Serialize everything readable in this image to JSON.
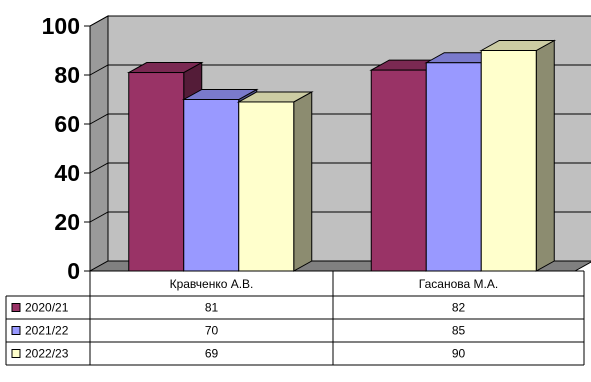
{
  "chart_data": {
    "type": "bar",
    "categories": [
      "Кравченко А.В.",
      "Гасанова М.А."
    ],
    "series": [
      {
        "name": "2020/21",
        "values": [
          81,
          82
        ],
        "color": "#993366"
      },
      {
        "name": "2021/22",
        "values": [
          70,
          85
        ],
        "color": "#9999ff"
      },
      {
        "name": "2022/23",
        "values": [
          69,
          90
        ],
        "color": "#ffffcc"
      }
    ],
    "ylim": [
      0,
      100
    ],
    "yticks": [
      "0",
      "20",
      "40",
      "60",
      "80",
      "100"
    ],
    "grid": true,
    "legend": "bottom-left data table",
    "plot_background": "#c0c0c0"
  }
}
